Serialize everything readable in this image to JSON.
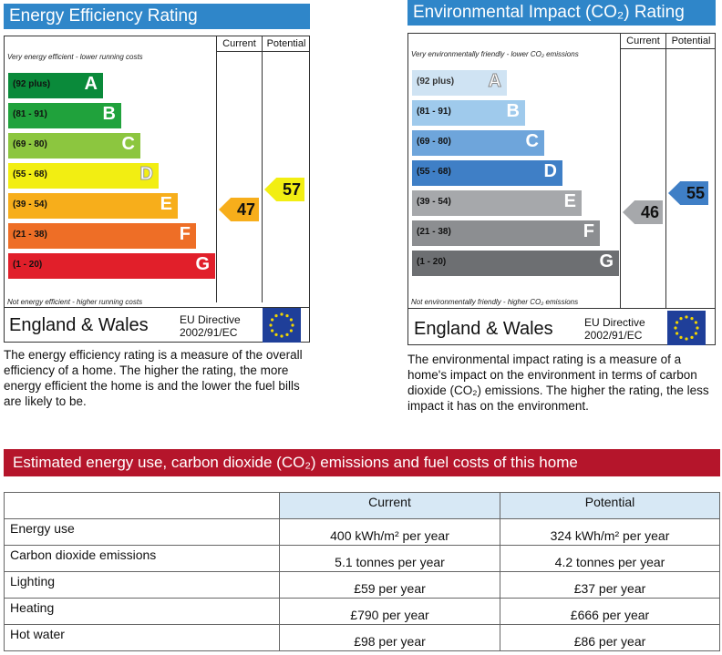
{
  "energy": {
    "title": "Energy Efficiency Rating",
    "col_current": "Current",
    "col_potential": "Potential",
    "top_note": "Very energy efficient - lower running costs",
    "bottom_note": "Not energy efficient - higher running costs",
    "bands": [
      {
        "range": "(92 plus)",
        "letter": "A",
        "color": "#0a8a3a"
      },
      {
        "range": "(81 - 91)",
        "letter": "B",
        "color": "#20a23c"
      },
      {
        "range": "(69 - 80)",
        "letter": "C",
        "color": "#8cc63f"
      },
      {
        "range": "(55 - 68)",
        "letter": "D",
        "color": "#f2ee12"
      },
      {
        "range": "(39 - 54)",
        "letter": "E",
        "color": "#f7ae1b"
      },
      {
        "range": "(21 - 38)",
        "letter": "F",
        "color": "#ee6e26"
      },
      {
        "range": "(1 - 20)",
        "letter": "G",
        "color": "#e11f2a"
      }
    ],
    "current": {
      "value": "47",
      "band": 4,
      "color": "#f7ae1b"
    },
    "potential": {
      "value": "57",
      "band": 3,
      "color": "#f2ee12"
    },
    "region": "England & Wales",
    "directive_line1": "EU Directive",
    "directive_line2": "2002/91/EC",
    "description": "The energy efficiency rating is a measure of the overall efficiency of a home. The higher the rating, the more energy efficient the home is and the lower the fuel bills are likely to be."
  },
  "environment": {
    "title": "Environmental Impact (CO₂) Rating",
    "col_current": "Current",
    "col_potential": "Potential",
    "top_note": "Very environmentally friendly - lower CO₂ emissions",
    "bottom_note": "Not environmentally friendly - higher CO₂ emissions",
    "bands": [
      {
        "range": "(92 plus)",
        "letter": "A",
        "color": "#cfe3f3"
      },
      {
        "range": "(81 - 91)",
        "letter": "B",
        "color": "#9fcaec"
      },
      {
        "range": "(69 - 80)",
        "letter": "C",
        "color": "#6ea5db"
      },
      {
        "range": "(55 - 68)",
        "letter": "D",
        "color": "#3f7fc6"
      },
      {
        "range": "(39 - 54)",
        "letter": "E",
        "color": "#a6a8ab"
      },
      {
        "range": "(21 - 38)",
        "letter": "F",
        "color": "#8c8e91"
      },
      {
        "range": "(1 - 20)",
        "letter": "G",
        "color": "#6d6f72"
      }
    ],
    "current": {
      "value": "46",
      "band": 4,
      "color": "#a6a8ab"
    },
    "potential": {
      "value": "55",
      "band": 3,
      "color": "#3f7fc6"
    },
    "region": "England & Wales",
    "directive_line1": "EU Directive",
    "directive_line2": "2002/91/EC",
    "description": "The environmental impact rating is a measure of a home's impact on the environment in terms of carbon dioxide (CO₂) emissions. The higher the rating, the less impact it has on the environment."
  },
  "estimates": {
    "title": "Estimated energy use, carbon dioxide (CO₂) emissions and fuel costs of this home",
    "col_current": "Current",
    "col_potential": "Potential",
    "rows": [
      {
        "label": "Energy use",
        "current": "400 kWh/m² per year",
        "potential": "324 kWh/m² per year"
      },
      {
        "label": "Carbon dioxide emissions",
        "current": "5.1 tonnes per year",
        "potential": "4.2 tonnes per year"
      },
      {
        "label": "Lighting",
        "current": "£59 per year",
        "potential": "£37 per year"
      },
      {
        "label": "Heating",
        "current": "£790 per year",
        "potential": "£666 per year"
      },
      {
        "label": "Hot water",
        "current": "£98 per year",
        "potential": "£86 per year"
      }
    ]
  },
  "colors": {
    "energy_title_bg": "#2f86c9",
    "section_bar_bg": "#b5152b",
    "eu_flag_blue": "#1f3f99",
    "eu_star": "#f2d600"
  }
}
